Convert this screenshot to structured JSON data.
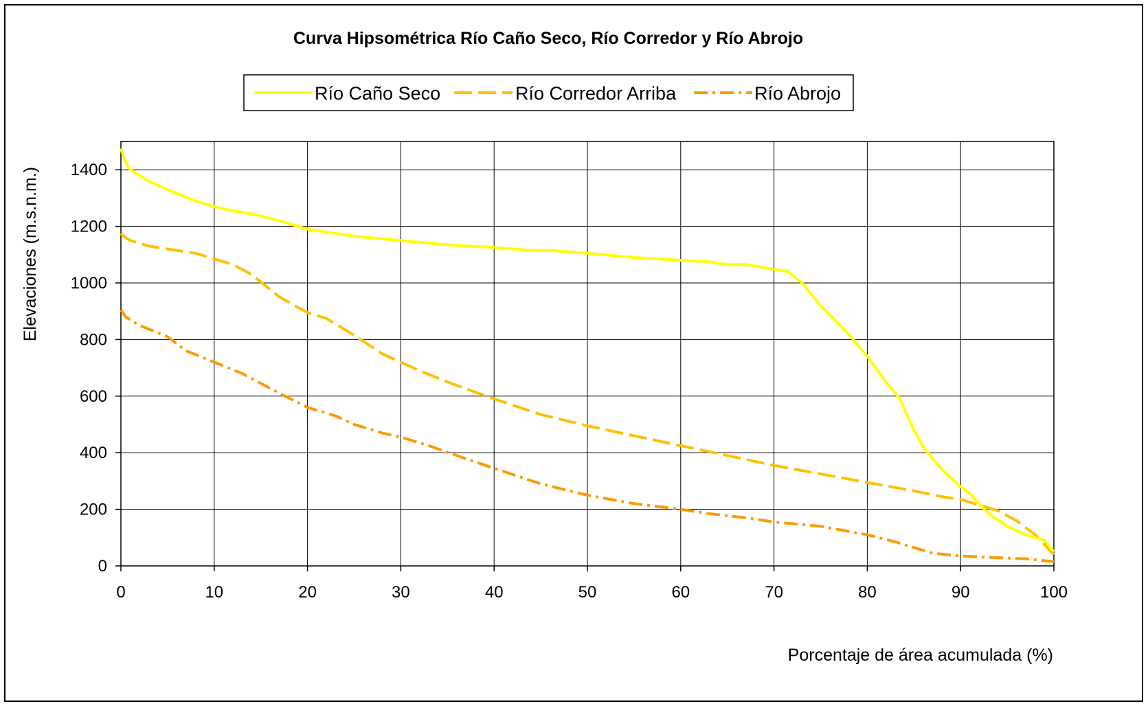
{
  "chart_data": {
    "type": "line",
    "title": "Curva Hipsométrica Río Caño Seco, Río Corredor y Río Abrojo",
    "xlabel": "Porcentaje de área acumulada (%)",
    "ylabel": "Elevaciones (m.s.n.m.)",
    "xlim": [
      0,
      100
    ],
    "ylim": [
      0,
      1500
    ],
    "xticks": [
      0,
      10,
      20,
      30,
      40,
      50,
      60,
      70,
      80,
      90,
      100
    ],
    "yticks": [
      0,
      200,
      400,
      600,
      800,
      1000,
      1200,
      1400
    ],
    "grid": true,
    "legend": "top",
    "series": [
      {
        "name": "Río Caño Seco",
        "color": "#ffff00",
        "dash": "solid",
        "x": [
          0,
          0.5,
          1,
          3,
          5,
          8,
          10,
          12,
          14,
          17,
          20,
          22,
          25,
          30,
          35,
          40,
          44,
          46,
          50,
          55,
          60,
          63,
          65,
          67,
          70,
          71.5,
          73,
          75,
          78,
          80,
          82,
          83.5,
          85,
          86,
          87,
          88,
          89,
          90,
          91,
          92,
          93,
          95,
          97,
          99,
          100
        ],
        "y": [
          1475,
          1425,
          1400,
          1360,
          1330,
          1290,
          1270,
          1255,
          1245,
          1220,
          1190,
          1180,
          1165,
          1150,
          1135,
          1125,
          1115,
          1115,
          1105,
          1090,
          1080,
          1075,
          1065,
          1065,
          1048,
          1040,
          1000,
          920,
          820,
          740,
          650,
          590,
          480,
          420,
          380,
          340,
          310,
          280,
          255,
          220,
          185,
          140,
          110,
          90,
          50
        ]
      },
      {
        "name": "Río Corredor Arriba",
        "color": "#ffc000",
        "dash": "long-dash",
        "x": [
          0,
          0.5,
          1,
          3,
          5,
          8,
          10,
          12,
          14,
          17,
          20,
          22,
          25,
          28,
          30,
          32,
          35,
          40,
          45,
          50,
          55,
          60,
          65,
          70,
          75,
          80,
          85,
          88,
          90,
          92,
          94,
          96,
          98,
          100
        ],
        "y": [
          1175,
          1160,
          1150,
          1130,
          1120,
          1105,
          1085,
          1065,
          1030,
          950,
          895,
          875,
          815,
          750,
          720,
          690,
          650,
          590,
          535,
          495,
          460,
          425,
          390,
          355,
          325,
          295,
          265,
          245,
          235,
          215,
          195,
          160,
          110,
          40
        ]
      },
      {
        "name": "Río Abrojo",
        "color": "#ff9900",
        "dash": "dash-dot",
        "x": [
          0,
          0.5,
          2,
          5,
          7,
          10,
          13,
          17,
          20,
          23,
          25,
          28,
          30,
          33,
          36,
          40,
          45,
          50,
          55,
          60,
          63,
          67,
          70,
          75,
          80,
          83,
          87,
          90,
          93,
          97,
          100
        ],
        "y": [
          905,
          880,
          850,
          810,
          760,
          720,
          680,
          610,
          560,
          530,
          500,
          470,
          455,
          425,
          390,
          345,
          290,
          250,
          220,
          200,
          185,
          170,
          155,
          140,
          110,
          85,
          45,
          35,
          30,
          25,
          15
        ]
      }
    ]
  }
}
